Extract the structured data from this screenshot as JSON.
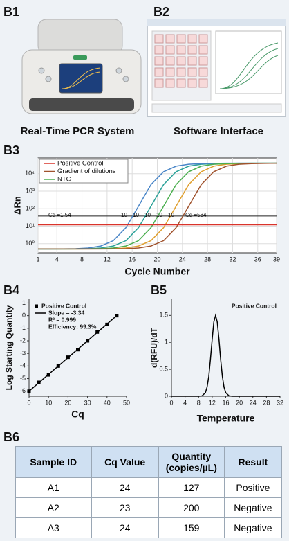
{
  "panel_labels": [
    "B1",
    "B2",
    "B3",
    "B4",
    "B5",
    "B6"
  ],
  "captions": [
    "Real-Time PCR System",
    "Software Interface"
  ],
  "chart_data": [
    {
      "type": "line",
      "yscale": "log",
      "grid": true,
      "legend": "upper left",
      "x_label": "Cycle Number",
      "y_label": "ΔRn",
      "xlim": [
        1,
        39
      ],
      "xticks": [
        1,
        4,
        8,
        12,
        16,
        20,
        24,
        28,
        32,
        36,
        39
      ],
      "ylim": [
        0.3,
        80000
      ],
      "yticks": [
        {
          "value": 10000,
          "label": "10⁴"
        },
        {
          "value": 1000,
          "label": "10³"
        },
        {
          "value": 100,
          "label": "10²"
        },
        {
          "value": 10,
          "label": "10¹"
        },
        {
          "value": 1,
          "label": "10⁰"
        }
      ],
      "threshold": 38,
      "annotations": [
        "Cq =1.54",
        "10",
        "10",
        "10",
        "10",
        "10",
        "Cq =584"
      ],
      "x": [
        1,
        3,
        5,
        7,
        9,
        11,
        13,
        15,
        17,
        19,
        21,
        23,
        25,
        27,
        29,
        31,
        33,
        35,
        37,
        39
      ],
      "series": [
        {
          "name": "Positive Control",
          "color": "#d9342b",
          "values": [
            12,
            12,
            12,
            12,
            12,
            12,
            12,
            12,
            12,
            12,
            12,
            12,
            12,
            12,
            12,
            12,
            12,
            12,
            12,
            12
          ]
        },
        {
          "name": "Gradient of dilutions",
          "color": "#a0522d",
          "values": [
            0.5,
            0.5,
            0.5,
            0.5,
            0.5,
            0.5,
            0.51,
            0.52,
            0.57,
            0.74,
            1.5,
            8.2,
            140,
            2400,
            13000,
            27000,
            35000,
            38000,
            39000,
            40000
          ]
        },
        {
          "name": "NTC",
          "color": "#4caf50",
          "values": [
            0.5,
            0.5,
            0.5,
            0.5,
            0.51,
            0.52,
            0.57,
            0.74,
            1.5,
            8.2,
            140,
            2400,
            13000,
            27000,
            35000,
            38000,
            39000,
            40000,
            40000,
            40000
          ]
        },
        {
          "color": "#4a86c8",
          "values": [
            0.5,
            0.5,
            0.51,
            0.52,
            0.57,
            0.74,
            1.5,
            8.2,
            140,
            2400,
            13000,
            27000,
            35000,
            38000,
            39000,
            40000,
            40000,
            40000,
            40000,
            40000
          ]
        },
        {
          "color": "#2aa198",
          "values": [
            0.5,
            0.5,
            0.5,
            0.51,
            0.52,
            0.57,
            0.74,
            1.5,
            8.2,
            140,
            2400,
            13000,
            27000,
            35000,
            38000,
            39000,
            40000,
            40000,
            40000,
            40000
          ]
        },
        {
          "color": "#e0a030",
          "values": [
            0.5,
            0.5,
            0.5,
            0.5,
            0.5,
            0.51,
            0.52,
            0.57,
            0.74,
            1.5,
            8.2,
            140,
            2400,
            13000,
            27000,
            35000,
            38000,
            39000,
            40000,
            40000
          ]
        }
      ]
    },
    {
      "type": "scatter",
      "grid": false,
      "legend": "upper left",
      "x_label": "Cq",
      "y_label": "Log Starting Quantity",
      "xlim": [
        0,
        50
      ],
      "xticks": [
        0,
        10,
        20,
        30,
        40,
        50
      ],
      "ylim": [
        -6.4,
        1.3
      ],
      "yticks": [
        1,
        0,
        -1,
        -2,
        -3,
        -4,
        -5,
        -6
      ],
      "legend_notes": [
        "R² = 0.999",
        "Efficiency: 99.3%"
      ],
      "series": [
        {
          "name": "Positive Control",
          "color": "#000000",
          "style": "markers",
          "x": [
            0,
            5,
            10,
            15,
            20,
            25,
            30,
            35,
            40,
            45
          ],
          "values": [
            -6,
            -5.3,
            -4.7,
            -4,
            -3.3,
            -2.7,
            -2,
            -1.3,
            -0.7,
            0
          ]
        },
        {
          "name": "Slope = -3.34",
          "color": "#000000",
          "style": "line",
          "x": [
            0,
            45
          ],
          "values": [
            -6,
            0
          ]
        }
      ]
    },
    {
      "type": "line",
      "grid": false,
      "legend": "upper right",
      "legend_markers": false,
      "x_label": "Temperature",
      "y_label": "d(RFU)/dT",
      "xlim": [
        0,
        32
      ],
      "xticks": [
        0,
        4,
        8,
        12,
        16,
        20,
        24,
        28,
        32
      ],
      "ylim": [
        0,
        1.8
      ],
      "yticks": [
        0,
        0.5,
        1,
        1.5
      ],
      "series": [
        {
          "name": "Positive Control",
          "color": "#000000",
          "x": [
            0,
            2,
            4,
            6,
            8,
            9,
            10,
            10.5,
            11,
            11.5,
            12,
            12.5,
            13,
            13.5,
            14,
            14.5,
            15,
            15.5,
            16,
            17,
            18,
            20,
            24,
            28,
            32
          ],
          "values": [
            0,
            0,
            0,
            0,
            0,
            0.006,
            0.066,
            0.17,
            0.37,
            0.69,
            1.06,
            1.38,
            1.5,
            1.38,
            1.06,
            0.69,
            0.37,
            0.17,
            0.066,
            0.006,
            0,
            0,
            0,
            0,
            0
          ]
        }
      ]
    }
  ],
  "table": {
    "header": [
      "Sample ID",
      "Cq Value",
      "Quantity (copies/µL)",
      "Result"
    ],
    "rows": [
      [
        "A1",
        24,
        127,
        "Positive"
      ],
      [
        "A2",
        23,
        200,
        "Negative"
      ],
      [
        "A3",
        24,
        159,
        "Negative"
      ]
    ]
  }
}
